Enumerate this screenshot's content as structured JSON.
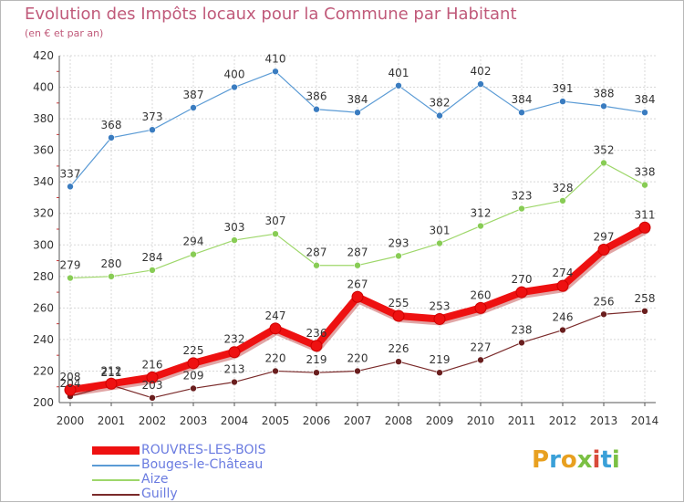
{
  "title": "Evolution des Impôts locaux pour la Commune par Habitant",
  "subtitle": "(en € et par an)",
  "logo_text": "Proxiti",
  "colors": {
    "title": "#c05a7a",
    "grid": "#d8d8d8",
    "axis_text": "#333333",
    "legend_text": "#6a7be0",
    "logo": [
      "#e8a020",
      "#3aa0d8",
      "#e8a020",
      "#7bc043",
      "#d84a3a",
      "#3aa0d8",
      "#7bc043"
    ]
  },
  "chart_data": {
    "type": "line",
    "title": "Evolution des Impôts locaux pour la Commune par Habitant",
    "subtitle": "(en € et par an)",
    "xlabel": "",
    "ylabel": "",
    "x": [
      "2000",
      "2001",
      "2002",
      "2003",
      "2004",
      "2005",
      "2006",
      "2007",
      "2008",
      "2009",
      "2010",
      "2011",
      "2012",
      "2013",
      "2014"
    ],
    "ylim": [
      200,
      420
    ],
    "yticks": [
      200,
      220,
      240,
      260,
      280,
      300,
      320,
      340,
      360,
      380,
      400,
      420
    ],
    "grid": true,
    "legend_position": "bottom-left",
    "series": [
      {
        "name": "ROUVRES-LES-BOIS",
        "color": "#ee1111",
        "marker_color": "#ee1111",
        "width": "thick",
        "values": [
          208,
          212,
          216,
          225,
          232,
          247,
          236,
          267,
          255,
          253,
          260,
          270,
          274,
          297,
          311
        ],
        "labels": [
          "208",
          "212",
          "216",
          "225",
          "232",
          "247",
          "236",
          "267",
          "255",
          "253",
          "260",
          "270",
          "274",
          "297",
          "311"
        ]
      },
      {
        "name": "Bouges-le-Château",
        "color": "#5b9bd5",
        "marker_color": "#3a7cc0",
        "width": "thin",
        "values": [
          337,
          368,
          373,
          387,
          400,
          410,
          386,
          384,
          401,
          382,
          402,
          384,
          391,
          388,
          384
        ],
        "labels": [
          "337",
          "368",
          "373",
          "387",
          "400",
          "410",
          "386",
          "384",
          "401",
          "382",
          "402",
          "384",
          "391",
          "388",
          "384"
        ]
      },
      {
        "name": "Aize",
        "color": "#9ed76a",
        "marker_color": "#88cc55",
        "width": "thin",
        "values": [
          279,
          280,
          284,
          294,
          303,
          307,
          287,
          287,
          293,
          301,
          312,
          323,
          328,
          352,
          338
        ],
        "labels": [
          "279",
          "280",
          "284",
          "294",
          "303",
          "307",
          "287",
          "287",
          "293",
          "301",
          "312",
          "323",
          "328",
          "352",
          "338"
        ]
      },
      {
        "name": "Guilly",
        "color": "#7a2a2a",
        "marker_color": "#6a1e1e",
        "width": "thin",
        "values": [
          204,
          211,
          203,
          209,
          213,
          220,
          219,
          220,
          226,
          219,
          227,
          238,
          246,
          256,
          258
        ],
        "labels": [
          "204",
          "211",
          "203",
          "209",
          "213",
          "220",
          "219",
          "220",
          "226",
          "219",
          "227",
          "238",
          "246",
          "256",
          "258"
        ]
      }
    ]
  }
}
